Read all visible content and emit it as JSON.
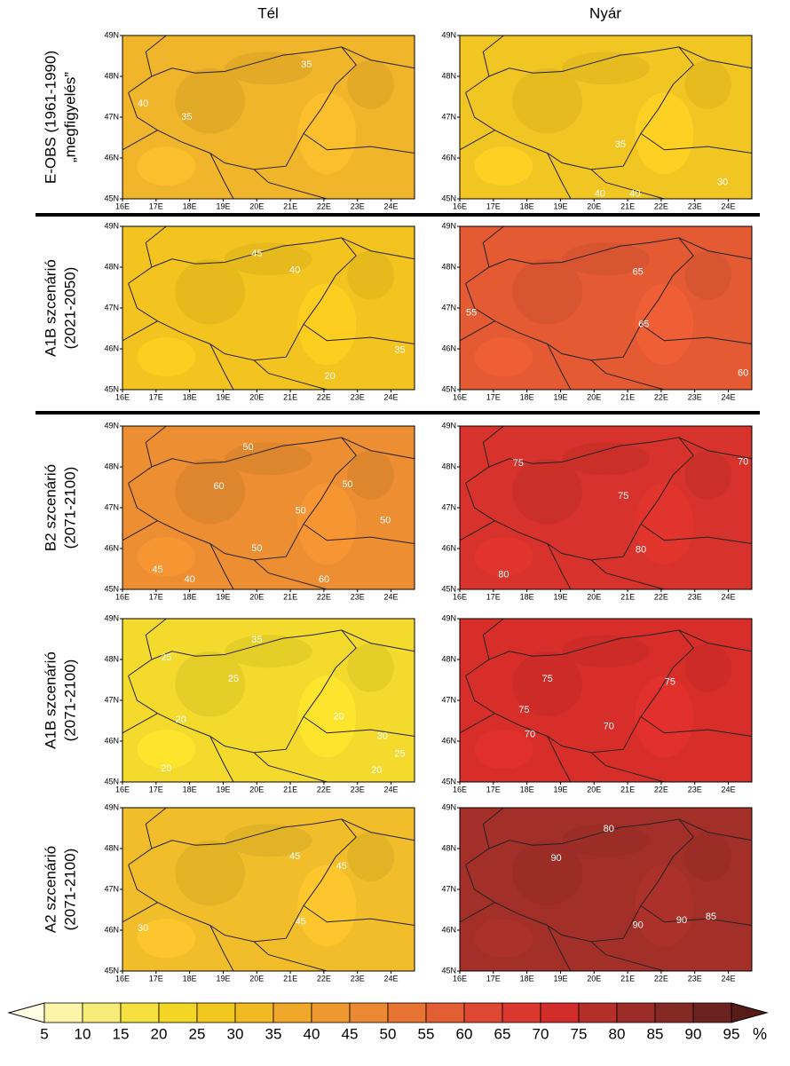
{
  "columns": [
    "Tél",
    "Nyár"
  ],
  "axes": {
    "lon": [
      "16E",
      "17E",
      "18E",
      "19E",
      "20E",
      "21E",
      "22E",
      "23E",
      "24E"
    ],
    "lat": [
      "49N",
      "48N",
      "47N",
      "46N",
      "45N"
    ]
  },
  "rows": [
    {
      "label": [
        "E-OBS (1961-1990)",
        "„megfigyelés”"
      ],
      "panels": [
        {
          "color": "#f0b52a",
          "contour_labels": [
            40,
            35,
            35
          ]
        },
        {
          "color": "#f2c622",
          "contour_labels": [
            35,
            40,
            40,
            30
          ]
        }
      ]
    },
    {
      "label": [
        "A1B szcenárió",
        "(2021-2050)"
      ],
      "panels": [
        {
          "color": "#f3c41f",
          "contour_labels": [
            45,
            40,
            35,
            20
          ]
        },
        {
          "color": "#e35a33",
          "contour_labels": [
            65,
            55,
            65,
            60
          ]
        }
      ]
    },
    {
      "label": [
        "B2 szcenárió",
        "(2071-2100)"
      ],
      "panels": [
        {
          "color": "#ec8e31",
          "contour_labels": [
            50,
            60,
            50,
            50,
            50,
            50,
            45,
            40,
            60
          ]
        },
        {
          "color": "#d7322b",
          "contour_labels": [
            75,
            70,
            75,
            80,
            80
          ]
        }
      ]
    },
    {
      "label": [
        "A1B szcenárió",
        "(2071-2100)"
      ],
      "panels": [
        {
          "color": "#f3da2c",
          "contour_labels": [
            35,
            25,
            25,
            20,
            20,
            30,
            25,
            20,
            20
          ]
        },
        {
          "color": "#d82e2a",
          "contour_labels": [
            75,
            75,
            75,
            70,
            70
          ]
        }
      ]
    },
    {
      "label": [
        "A2 szcenárió",
        "(2071-2100)"
      ],
      "panels": [
        {
          "color": "#f1bd2a",
          "contour_labels": [
            45,
            45,
            45,
            30
          ]
        },
        {
          "color": "#a32f29",
          "contour_labels": [
            80,
            90,
            90,
            90,
            85
          ]
        }
      ]
    }
  ],
  "colorbar": {
    "labels": [
      "5",
      "10",
      "15",
      "20",
      "25",
      "30",
      "35",
      "40",
      "45",
      "50",
      "55",
      "60",
      "65",
      "70",
      "75",
      "80",
      "85",
      "90",
      "95"
    ],
    "unit": "%",
    "colors": [
      "#fffde4",
      "#fcf4a8",
      "#f8ec78",
      "#f4e140",
      "#f3d624",
      "#f2c81e",
      "#f2ba22",
      "#f0a82a",
      "#ee982f",
      "#eb8832",
      "#e87433",
      "#e45e34",
      "#df4832",
      "#da382e",
      "#d22d2a",
      "#b52f2a",
      "#9c2c28",
      "#852925",
      "#6c231f",
      "#561c18"
    ]
  }
}
